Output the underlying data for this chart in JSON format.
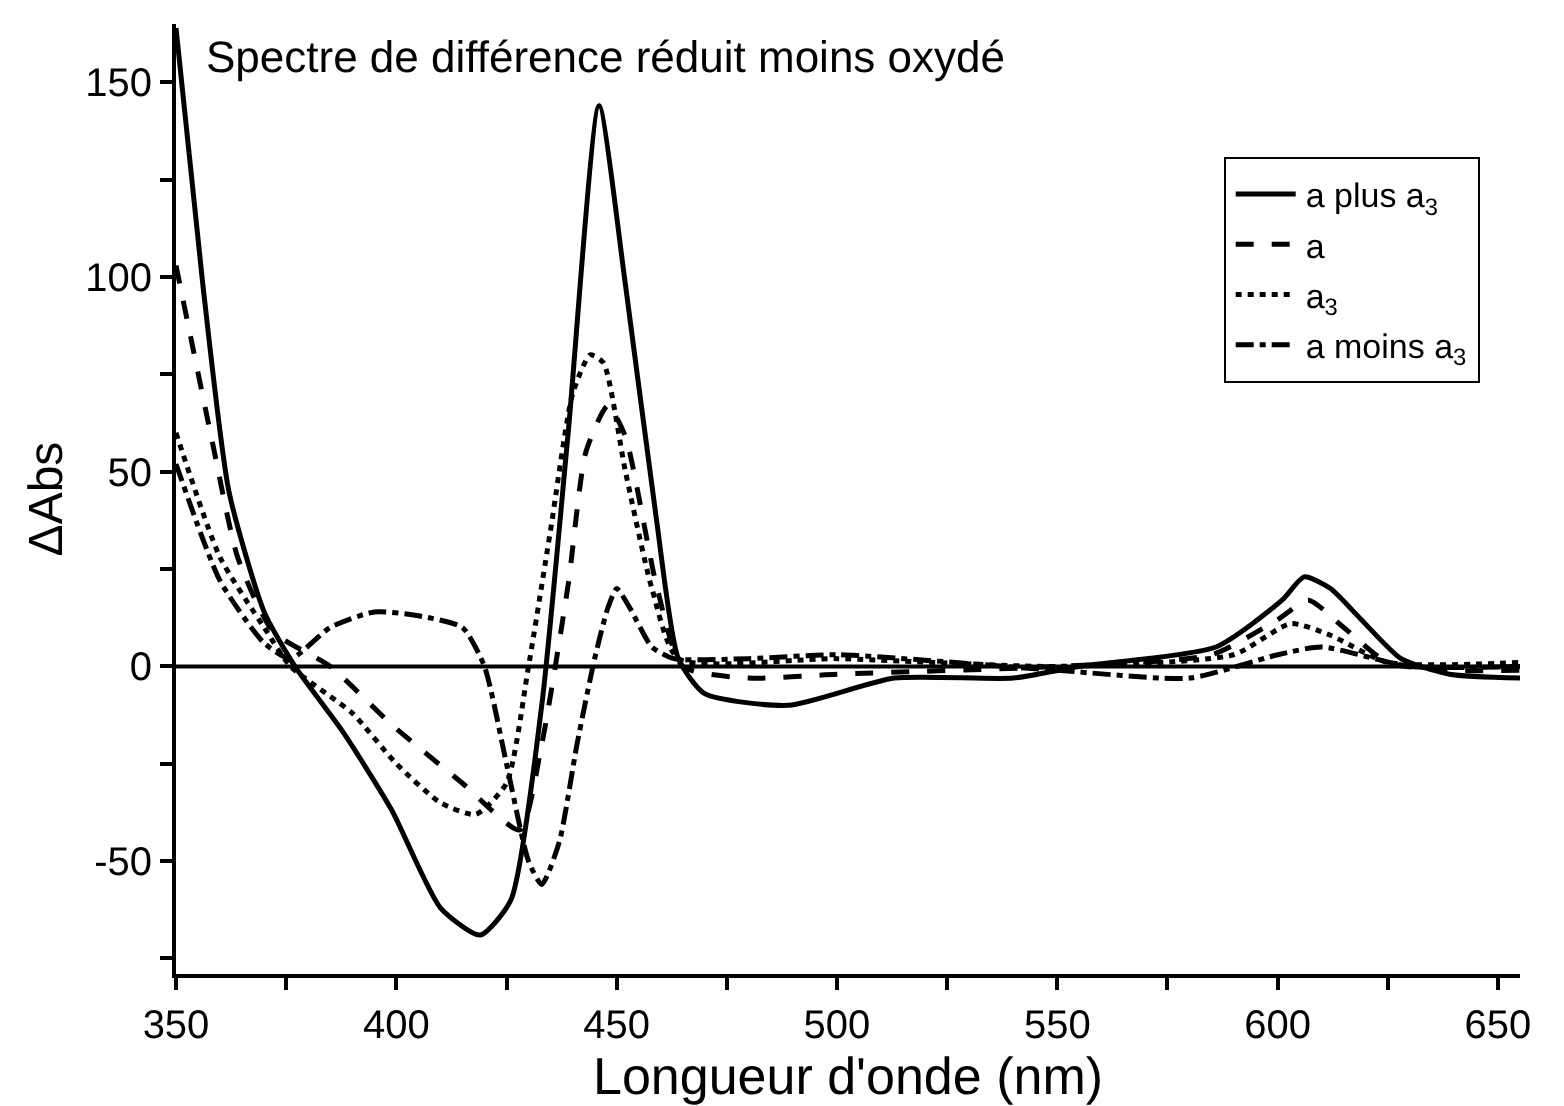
{
  "chart_data": {
    "type": "line",
    "title": "Spectre de différence réduit moins oxydé",
    "xlabel": "Longueur d'onde (nm)",
    "ylabel": "ΔAbs",
    "xlim": [
      350,
      655
    ],
    "ylim": [
      -79,
      165
    ],
    "xticks": [
      350,
      {
        "value": 375,
        "label": null
      },
      400,
      {
        "value": 425,
        "label": null
      },
      450,
      {
        "value": 475,
        "label": null
      },
      500,
      {
        "value": 525,
        "label": null
      },
      550,
      {
        "value": 575,
        "label": null
      },
      600,
      {
        "value": 625,
        "label": null
      },
      650
    ],
    "yticks": [
      {
        "value": -75,
        "label": null
      },
      -50,
      {
        "value": -25,
        "label": null
      },
      0,
      {
        "value": 25,
        "label": null
      },
      50,
      {
        "value": 75,
        "label": null
      },
      100,
      {
        "value": 125,
        "label": null
      },
      150
    ],
    "grid": false,
    "legend": "top right",
    "marker": "none",
    "ref_lines": [
      {
        "axis": "y",
        "value": 0,
        "color": "#000000",
        "line_style": "solid"
      }
    ],
    "series": [
      {
        "name": "a plus a$_{3}$",
        "color": "#000000",
        "line_style": "solid",
        "x": [
          350,
          356,
          362,
          370,
          377,
          388,
          399,
          410,
          419,
          426,
          433,
          439,
          446,
          452,
          459,
          464,
          470,
          489,
          513,
          540,
          555,
          586,
          601,
          606,
          612,
          619,
          628,
          639,
          655
        ],
        "values": [
          164,
          99,
          45,
          14,
          0,
          -17,
          -37,
          -62,
          -69,
          -60,
          -10,
          60,
          144,
          98,
          38,
          2,
          -7,
          -10,
          -3,
          -3,
          0,
          5,
          17,
          23,
          20,
          12,
          2,
          -2,
          -3
        ]
      },
      {
        "name": "a",
        "color": "#000000",
        "line_style": "dashed",
        "x": [
          350,
          358,
          364,
          372,
          385,
          399,
          415,
          428,
          433,
          439,
          443,
          448,
          452,
          459,
          465,
          480,
          500,
          550,
          585,
          600,
          607,
          615,
          625,
          640,
          655
        ],
        "values": [
          103,
          59,
          28,
          9,
          0,
          -15,
          -30,
          -42,
          -20,
          21,
          55,
          67,
          59,
          21,
          0,
          -3,
          -2,
          0,
          3,
          12,
          17,
          10,
          1,
          -1,
          -1
        ]
      },
      {
        "name": "a$_{3}$",
        "color": "#000000",
        "line_style": "dotted",
        "x": [
          350,
          360,
          370,
          376,
          390,
          400,
          410,
          418,
          425,
          430,
          435,
          440,
          444,
          447,
          452,
          458,
          464,
          500,
          550,
          590,
          603,
          612,
          625,
          655
        ],
        "values": [
          60,
          28,
          10,
          0,
          -12,
          -25,
          -35,
          -38,
          -30,
          0,
          35,
          70,
          80,
          78,
          50,
          20,
          2,
          2,
          0,
          3,
          11,
          8,
          1,
          1
        ]
      },
      {
        "name": "a moins a$_{3}$",
        "color": "#000000",
        "line_style": "dashdot",
        "x": [
          350,
          360,
          370,
          376,
          385,
          395,
          405,
          415,
          420,
          425,
          430,
          433,
          437,
          441,
          445,
          448,
          450,
          453,
          458,
          463,
          480,
          500,
          550,
          580,
          600,
          610,
          630,
          655
        ],
        "values": [
          52,
          22,
          6,
          2,
          10,
          14,
          13,
          10,
          0,
          -25,
          -50,
          -56,
          -45,
          -20,
          2,
          15,
          20,
          15,
          5,
          2,
          2,
          3,
          -1,
          -3,
          3,
          5,
          0,
          0
        ]
      }
    ]
  }
}
